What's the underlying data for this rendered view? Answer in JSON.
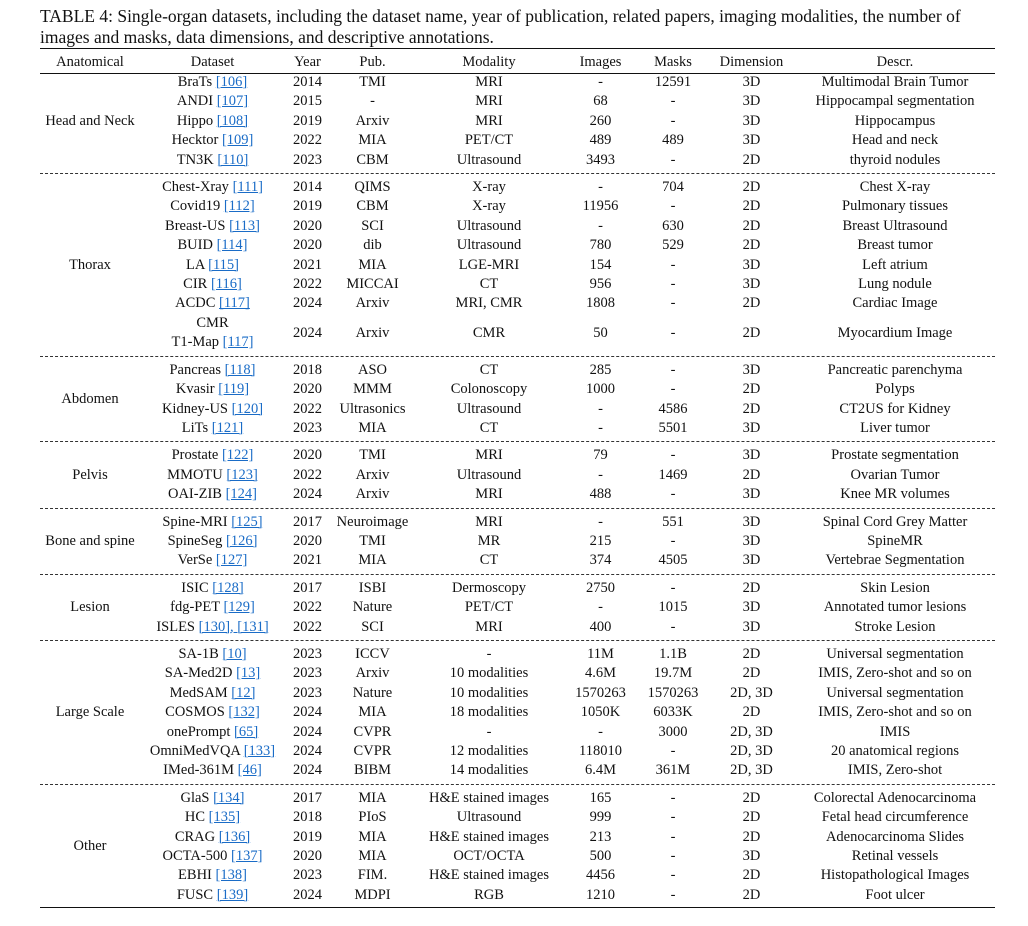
{
  "caption": "TABLE 4: Single-organ datasets, including the dataset name, year of publication, related papers, imaging modalities, the number of images and masks, data dimensions, and descriptive annotations.",
  "headers": [
    "Anatomical",
    "Dataset",
    "Year",
    "Pub.",
    "Modality",
    "Images",
    "Masks",
    "Dimension",
    "Descr."
  ],
  "groups": [
    {
      "name": "Head and Neck",
      "rows": [
        {
          "name": "BraTs",
          "refs": "[106]",
          "year": "2014",
          "pub": "TMI",
          "modality": "MRI",
          "images": "-",
          "masks": "12591",
          "dim": "3D",
          "descr": "Multimodal Brain Tumor"
        },
        {
          "name": "ANDI",
          "refs": "[107]",
          "year": "2015",
          "pub": "-",
          "modality": "MRI",
          "images": "68",
          "masks": "-",
          "dim": "3D",
          "descr": "Hippocampal segmentation"
        },
        {
          "name": "Hippo",
          "refs": "[108]",
          "year": "2019",
          "pub": "Arxiv",
          "modality": "MRI",
          "images": "260",
          "masks": "-",
          "dim": "3D",
          "descr": "Hippocampus"
        },
        {
          "name": "Hecktor",
          "refs": "[109]",
          "year": "2022",
          "pub": "MIA",
          "modality": "PET/CT",
          "images": "489",
          "masks": "489",
          "dim": "3D",
          "descr": "Head and neck"
        },
        {
          "name": "TN3K",
          "refs": "[110]",
          "year": "2023",
          "pub": "CBM",
          "modality": "Ultrasound",
          "images": "3493",
          "masks": "-",
          "dim": "2D",
          "descr": "thyroid nodules"
        }
      ]
    },
    {
      "name": "Thorax",
      "rows": [
        {
          "name": "Chest-Xray",
          "refs": "[111]",
          "year": "2014",
          "pub": "QIMS",
          "modality": "X-ray",
          "images": "-",
          "masks": "704",
          "dim": "2D",
          "descr": "Chest X-ray"
        },
        {
          "name": "Covid19",
          "refs": "[112]",
          "year": "2019",
          "pub": "CBM",
          "modality": "X-ray",
          "images": "11956",
          "masks": "-",
          "dim": "2D",
          "descr": "Pulmonary tissues"
        },
        {
          "name": "Breast-US",
          "refs": "[113]",
          "year": "2020",
          "pub": "SCI",
          "modality": "Ultrasound",
          "images": "-",
          "masks": "630",
          "dim": "2D",
          "descr": "Breast Ultrasound"
        },
        {
          "name": "BUID",
          "refs": "[114]",
          "year": "2020",
          "pub": "dib",
          "modality": "Ultrasound",
          "images": "780",
          "masks": "529",
          "dim": "2D",
          "descr": "Breast tumor"
        },
        {
          "name": "LA",
          "refs": "[115]",
          "year": "2021",
          "pub": "MIA",
          "modality": "LGE-MRI",
          "images": "154",
          "masks": "-",
          "dim": "3D",
          "descr": "Left atrium"
        },
        {
          "name": "CIR",
          "refs": "[116]",
          "year": "2022",
          "pub": "MICCAI",
          "modality": "CT",
          "images": "956",
          "masks": "-",
          "dim": "3D",
          "descr": "Lung nodule"
        },
        {
          "name": "ACDC",
          "refs": "[117]",
          "year": "2024",
          "pub": "Arxiv",
          "modality": "MRI, CMR",
          "images": "1808",
          "masks": "-",
          "dim": "2D",
          "descr": "Cardiac Image"
        },
        {
          "name": "CMR",
          "name2": "T1-Map",
          "refs": "[117]",
          "year": "2024",
          "pub": "Arxiv",
          "modality": "CMR",
          "images": "50",
          "masks": "-",
          "dim": "2D",
          "descr": "Myocardium Image"
        }
      ]
    },
    {
      "name": "Abdomen",
      "rows": [
        {
          "name": "Pancreas",
          "refs": "[118]",
          "year": "2018",
          "pub": "ASO",
          "modality": "CT",
          "images": "285",
          "masks": "-",
          "dim": "3D",
          "descr": "Pancreatic parenchyma"
        },
        {
          "name": "Kvasir",
          "refs": "[119]",
          "year": "2020",
          "pub": "MMM",
          "modality": "Colonoscopy",
          "images": "1000",
          "masks": "-",
          "dim": "2D",
          "descr": "Polyps"
        },
        {
          "name": "Kidney-US",
          "refs": "[120]",
          "year": "2022",
          "pub": "Ultrasonics",
          "modality": "Ultrasound",
          "images": "-",
          "masks": "4586",
          "dim": "2D",
          "descr": "CT2US for Kidney"
        },
        {
          "name": "LiTs",
          "refs": "[121]",
          "year": "2023",
          "pub": "MIA",
          "modality": "CT",
          "images": "-",
          "masks": "5501",
          "dim": "3D",
          "descr": "Liver tumor"
        }
      ]
    },
    {
      "name": "Pelvis",
      "rows": [
        {
          "name": "Prostate",
          "refs": "[122]",
          "year": "2020",
          "pub": "TMI",
          "modality": "MRI",
          "images": "79",
          "masks": "-",
          "dim": "3D",
          "descr": "Prostate segmentation"
        },
        {
          "name": "MMOTU",
          "refs": "[123]",
          "year": "2022",
          "pub": "Arxiv",
          "modality": "Ultrasound",
          "images": "-",
          "masks": "1469",
          "dim": "2D",
          "descr": "Ovarian Tumor"
        },
        {
          "name": "OAI-ZIB",
          "refs": "[124]",
          "year": "2024",
          "pub": "Arxiv",
          "modality": "MRI",
          "images": "488",
          "masks": "-",
          "dim": "3D",
          "descr": "Knee MR volumes"
        }
      ]
    },
    {
      "name": "Bone and spine",
      "rows": [
        {
          "name": "Spine-MRI",
          "refs": "[125]",
          "year": "2017",
          "pub": "Neuroimage",
          "modality": "MRI",
          "images": "-",
          "masks": "551",
          "dim": "3D",
          "descr": "Spinal Cord Grey Matter"
        },
        {
          "name": "SpineSeg",
          "refs": "[126]",
          "year": "2020",
          "pub": "TMI",
          "modality": "MR",
          "images": "215",
          "masks": "-",
          "dim": "3D",
          "descr": "SpineMR"
        },
        {
          "name": "VerSe",
          "refs": "[127]",
          "year": "2021",
          "pub": "MIA",
          "modality": "CT",
          "images": "374",
          "masks": "4505",
          "dim": "3D",
          "descr": "Vertebrae Segmentation"
        }
      ]
    },
    {
      "name": "Lesion",
      "rows": [
        {
          "name": "ISIC",
          "refs": "[128]",
          "year": "2017",
          "pub": "ISBI",
          "modality": "Dermoscopy",
          "images": "2750",
          "masks": "-",
          "dim": "2D",
          "descr": "Skin Lesion"
        },
        {
          "name": "fdg-PET",
          "refs": "[129]",
          "year": "2022",
          "pub": "Nature",
          "modality": "PET/CT",
          "images": "-",
          "masks": "1015",
          "dim": "3D",
          "descr": "Annotated tumor lesions"
        },
        {
          "name": "ISLES",
          "refs": "[130], [131]",
          "year": "2022",
          "pub": "SCI",
          "modality": "MRI",
          "images": "400",
          "masks": "-",
          "dim": "3D",
          "descr": "Stroke Lesion"
        }
      ]
    },
    {
      "name": "Large Scale",
      "rows": [
        {
          "name": "SA-1B",
          "refs": "[10]",
          "year": "2023",
          "pub": "ICCV",
          "modality": "-",
          "images": "11M",
          "masks": "1.1B",
          "dim": "2D",
          "descr": "Universal segmentation"
        },
        {
          "name": "SA-Med2D",
          "refs": "[13]",
          "year": "2023",
          "pub": "Arxiv",
          "modality": "10 modalities",
          "images": "4.6M",
          "masks": "19.7M",
          "dim": "2D",
          "descr": "IMIS, Zero-shot and so on"
        },
        {
          "name": "MedSAM",
          "refs": "[12]",
          "year": "2023",
          "pub": "Nature",
          "modality": "10 modalities",
          "images": "1570263",
          "masks": "1570263",
          "dim": "2D, 3D",
          "descr": "Universal segmentation"
        },
        {
          "name": "COSMOS",
          "refs": "[132]",
          "year": "2024",
          "pub": "MIA",
          "modality": "18 modalities",
          "images": "1050K",
          "masks": "6033K",
          "dim": "2D",
          "descr": "IMIS, Zero-shot and so on"
        },
        {
          "name": "onePrompt",
          "refs": "[65]",
          "year": "2024",
          "pub": "CVPR",
          "modality": "-",
          "images": "-",
          "masks": "3000",
          "dim": "2D, 3D",
          "descr": "IMIS"
        },
        {
          "name": "OmniMedVQA",
          "refs": "[133]",
          "year": "2024",
          "pub": "CVPR",
          "modality": "12 modalities",
          "images": "118010",
          "masks": "-",
          "dim": "2D, 3D",
          "descr": "20 anatomical regions"
        },
        {
          "name": "IMed-361M",
          "refs": "[46]",
          "year": "2024",
          "pub": "BIBM",
          "modality": "14 modalities",
          "images": "6.4M",
          "masks": "361M",
          "dim": "2D, 3D",
          "descr": "IMIS, Zero-shot"
        }
      ]
    },
    {
      "name": "Other",
      "rows": [
        {
          "name": "GlaS",
          "refs": "[134]",
          "year": "2017",
          "pub": "MIA",
          "modality": "H&E stained images",
          "images": "165",
          "masks": "-",
          "dim": "2D",
          "descr": "Colorectal Adenocarcinoma"
        },
        {
          "name": "HC",
          "refs": "[135]",
          "year": "2018",
          "pub": "PIoS",
          "modality": "Ultrasound",
          "images": "999",
          "masks": "-",
          "dim": "2D",
          "descr": "Fetal head circumference"
        },
        {
          "name": "CRAG",
          "refs": "[136]",
          "year": "2019",
          "pub": "MIA",
          "modality": "H&E stained images",
          "images": "213",
          "masks": "-",
          "dim": "2D",
          "descr": "Adenocarcinoma Slides"
        },
        {
          "name": "OCTA-500",
          "refs": "[137]",
          "year": "2020",
          "pub": "MIA",
          "modality": "OCT/OCTA",
          "images": "500",
          "masks": "-",
          "dim": "3D",
          "descr": "Retinal vessels"
        },
        {
          "name": "EBHI",
          "refs": "[138]",
          "year": "2023",
          "pub": "FIM.",
          "modality": "H&E stained images",
          "images": "4456",
          "masks": "-",
          "dim": "2D",
          "descr": "Histopathological Images"
        },
        {
          "name": "FUSC",
          "refs": "[139]",
          "year": "2024",
          "pub": "MDPI",
          "modality": "RGB",
          "images": "1210",
          "masks": "-",
          "dim": "2D",
          "descr": "Foot ulcer"
        }
      ]
    }
  ]
}
